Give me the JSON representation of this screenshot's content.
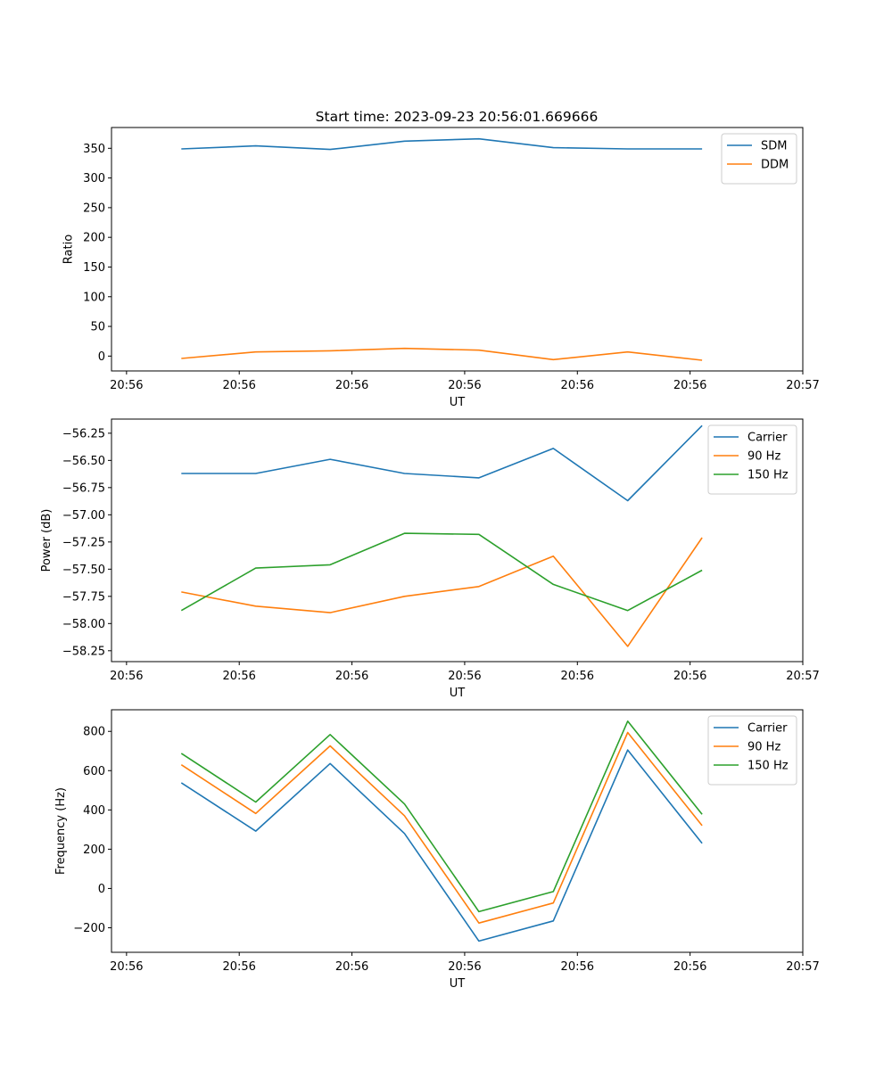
{
  "figure_title": "Start time: 2023-09-23 20:56:01.669666",
  "colors": {
    "c0": "#1f77b4",
    "c1": "#ff7f0e",
    "c2": "#2ca02c"
  },
  "chart_data": [
    {
      "type": "line",
      "ylabel": "Ratio",
      "xlabel": "UT",
      "xlim": [
        0,
        9.2
      ],
      "ylim": [
        -25,
        385
      ],
      "x_ticks": [
        0.2,
        1.7,
        3.2,
        4.7,
        6.2,
        7.7,
        9.2
      ],
      "x_tick_labels": [
        "20:56",
        "20:56",
        "20:56",
        "20:56",
        "20:56",
        "20:56",
        "20:57"
      ],
      "y_ticks": [
        0,
        50,
        100,
        150,
        200,
        250,
        300,
        350
      ],
      "y_tick_labels": [
        "0",
        "50",
        "100",
        "150",
        "200",
        "250",
        "300",
        "350"
      ],
      "x": [
        0.93,
        1.92,
        2.91,
        3.9,
        4.89,
        5.88,
        6.87,
        7.86
      ],
      "legend": "top-right",
      "series": [
        {
          "name": "SDM",
          "color_key": "c0",
          "values": [
            349,
            354,
            348,
            362,
            366,
            351,
            349,
            349
          ]
        },
        {
          "name": "DDM",
          "color_key": "c1",
          "values": [
            -4,
            7,
            9,
            13,
            10,
            -6,
            7,
            -7
          ]
        }
      ]
    },
    {
      "type": "line",
      "ylabel": "Power (dB)",
      "xlabel": "UT",
      "xlim": [
        0,
        9.2
      ],
      "ylim": [
        -58.35,
        -56.12
      ],
      "x_ticks": [
        0.2,
        1.7,
        3.2,
        4.7,
        6.2,
        7.7,
        9.2
      ],
      "x_tick_labels": [
        "20:56",
        "20:56",
        "20:56",
        "20:56",
        "20:56",
        "20:56",
        "20:57"
      ],
      "y_ticks": [
        -58.25,
        -58.0,
        -57.75,
        -57.5,
        -57.25,
        -57.0,
        -56.75,
        -56.5,
        -56.25
      ],
      "y_tick_labels": [
        "−58.25",
        "−58.00",
        "−57.75",
        "−57.50",
        "−57.25",
        "−57.00",
        "−56.75",
        "−56.50",
        "−56.25"
      ],
      "x": [
        0.93,
        1.92,
        2.91,
        3.9,
        4.89,
        5.88,
        6.87,
        7.86
      ],
      "legend": "top-right",
      "series": [
        {
          "name": "Carrier",
          "color_key": "c0",
          "values": [
            -56.62,
            -56.62,
            -56.49,
            -56.62,
            -56.66,
            -56.39,
            -56.87,
            -56.18
          ]
        },
        {
          "name": "90 Hz",
          "color_key": "c1",
          "values": [
            -57.71,
            -57.84,
            -57.9,
            -57.75,
            -57.66,
            -57.38,
            -58.21,
            -57.21
          ]
        },
        {
          "name": "150 Hz",
          "color_key": "c2",
          "values": [
            -57.88,
            -57.49,
            -57.46,
            -57.17,
            -57.18,
            -57.64,
            -57.88,
            -57.51
          ]
        }
      ]
    },
    {
      "type": "line",
      "ylabel": "Frequency (Hz)",
      "xlabel": "UT",
      "xlim": [
        0,
        9.2
      ],
      "ylim": [
        -325,
        910
      ],
      "x_ticks": [
        0.2,
        1.7,
        3.2,
        4.7,
        6.2,
        7.7,
        9.2
      ],
      "x_tick_labels": [
        "20:56",
        "20:56",
        "20:56",
        "20:56",
        "20:56",
        "20:56",
        "20:57"
      ],
      "y_ticks": [
        -200,
        0,
        200,
        400,
        600,
        800
      ],
      "y_tick_labels": [
        "−200",
        "0",
        "200",
        "400",
        "600",
        "800"
      ],
      "x": [
        0.93,
        1.92,
        2.91,
        3.9,
        4.89,
        5.88,
        6.87,
        7.86
      ],
      "legend": "top-right",
      "series": [
        {
          "name": "Carrier",
          "color_key": "c0",
          "values": [
            538,
            292,
            636,
            280,
            -268,
            -165,
            705,
            230
          ]
        },
        {
          "name": "90 Hz",
          "color_key": "c1",
          "values": [
            630,
            382,
            726,
            370,
            -176,
            -74,
            794,
            320
          ]
        },
        {
          "name": "150 Hz",
          "color_key": "c2",
          "values": [
            688,
            440,
            784,
            430,
            -118,
            -16,
            852,
            378
          ]
        }
      ]
    }
  ]
}
